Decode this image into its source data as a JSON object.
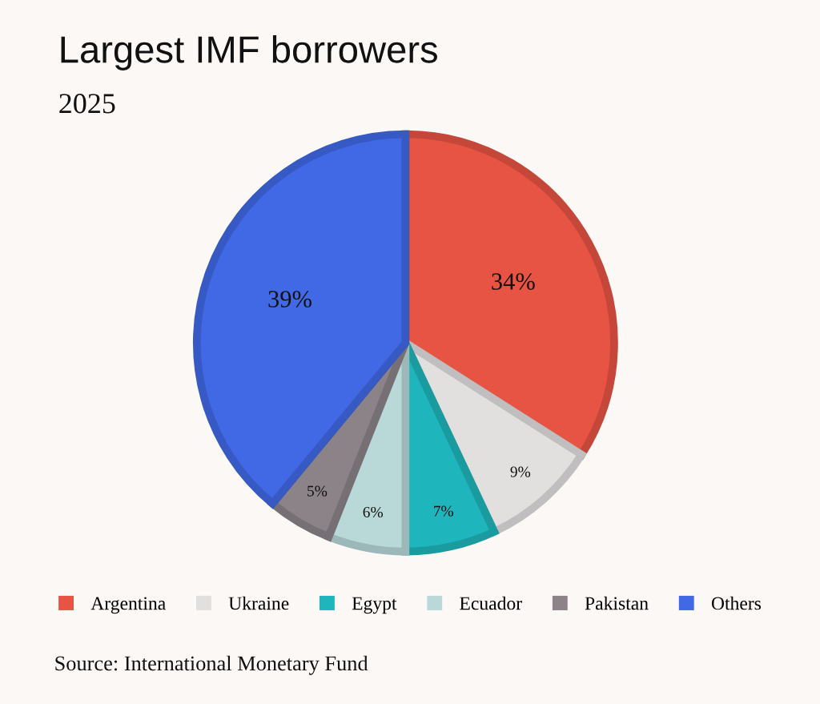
{
  "chart_data": {
    "type": "pie",
    "title": "Largest IMF borrowers",
    "subtitle": "2025",
    "categories": [
      "Argentina",
      "Ukraine",
      "Egypt",
      "Ecuador",
      "Pakistan",
      "Others"
    ],
    "values": [
      34,
      9,
      7,
      6,
      5,
      39
    ],
    "value_labels": [
      "34%",
      "9%",
      "7%",
      "6%",
      "5%",
      "39%"
    ],
    "colors": [
      "#e85444",
      "#e2dfdf",
      "#1eb6bc",
      "#b9d9d9",
      "#8b8387",
      "#4169e6"
    ],
    "legend": "bottom",
    "annotations": [
      "Source: International Monetary Fund"
    ]
  }
}
